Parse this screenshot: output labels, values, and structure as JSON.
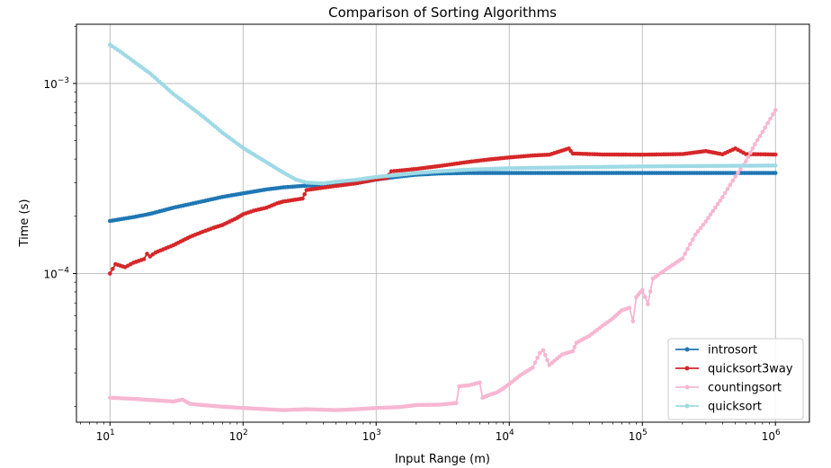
{
  "chart_data": {
    "type": "line",
    "title": "Comparison of Sorting Algorithms",
    "xlabel": "Input Range (m)",
    "ylabel": "Time (s)",
    "xscale": "log",
    "yscale": "log",
    "xlim": [
      5.6,
      1800000
    ],
    "ylim": [
      1.65e-05,
      0.00205
    ],
    "grid": true,
    "legend_position": "bottom-right",
    "x_ticks": [
      {
        "value": 10,
        "base": "10",
        "exp": "1"
      },
      {
        "value": 100,
        "base": "10",
        "exp": "2"
      },
      {
        "value": 1000,
        "base": "10",
        "exp": "3"
      },
      {
        "value": 10000,
        "base": "10",
        "exp": "4"
      },
      {
        "value": 100000,
        "base": "10",
        "exp": "5"
      },
      {
        "value": 1000000,
        "base": "10",
        "exp": "6"
      }
    ],
    "y_ticks": [
      {
        "value": 0.0001,
        "base": "10",
        "exp": "−4"
      },
      {
        "value": 0.001,
        "base": "10",
        "exp": "−3"
      }
    ],
    "series": [
      {
        "name": "introsort",
        "color": "#1f77b4",
        "points": [
          [
            10,
            0.000189
          ],
          [
            15,
            0.000198
          ],
          [
            20,
            0.000206
          ],
          [
            30,
            0.000222
          ],
          [
            50,
            0.00024
          ],
          [
            70,
            0.000253
          ],
          [
            100,
            0.000264
          ],
          [
            150,
            0.000277
          ],
          [
            200,
            0.000284
          ],
          [
            300,
            0.00029
          ],
          [
            500,
            0.000294
          ],
          [
            700,
            0.000298
          ],
          [
            1000,
            0.000312
          ],
          [
            1500,
            0.000324
          ],
          [
            2000,
            0.000331
          ],
          [
            3000,
            0.000336
          ],
          [
            5000,
            0.000338
          ],
          [
            10000,
            0.000338
          ],
          [
            100000,
            0.000338
          ],
          [
            1000000,
            0.000338
          ]
        ]
      },
      {
        "name": "quicksort3way",
        "color": "#d62728",
        "points": [
          [
            10,
            0.0001
          ],
          [
            11,
            0.000112
          ],
          [
            13,
            0.000108
          ],
          [
            15,
            0.000114
          ],
          [
            18,
            0.000119
          ],
          [
            19,
            0.000127
          ],
          [
            20,
            0.000123
          ],
          [
            22,
            0.000129
          ],
          [
            30,
            0.000141
          ],
          [
            40,
            0.000156
          ],
          [
            50,
            0.000166
          ],
          [
            60,
            0.000174
          ],
          [
            70,
            0.00018
          ],
          [
            90,
            0.000196
          ],
          [
            100,
            0.000205
          ],
          [
            120,
            0.000214
          ],
          [
            150,
            0.000222
          ],
          [
            180,
            0.000234
          ],
          [
            200,
            0.000239
          ],
          [
            280,
            0.000248
          ],
          [
            300,
            0.000275
          ],
          [
            400,
            0.000283
          ],
          [
            500,
            0.000289
          ],
          [
            700,
            0.000298
          ],
          [
            1000,
            0.000313
          ],
          [
            1200,
            0.000318
          ],
          [
            1300,
            0.000345
          ],
          [
            1500,
            0.000348
          ],
          [
            2000,
            0.000355
          ],
          [
            3000,
            0.000368
          ],
          [
            5000,
            0.000387
          ],
          [
            7000,
            0.000398
          ],
          [
            10000,
            0.000408
          ],
          [
            15000,
            0.000418
          ],
          [
            20000,
            0.000422
          ],
          [
            28000,
            0.000455
          ],
          [
            30000,
            0.000428
          ],
          [
            50000,
            0.000423
          ],
          [
            100000,
            0.000422
          ],
          [
            200000,
            0.000425
          ],
          [
            300000,
            0.000441
          ],
          [
            400000,
            0.000424
          ],
          [
            500000,
            0.000455
          ],
          [
            600000,
            0.000425
          ],
          [
            1000000,
            0.000423
          ]
        ]
      },
      {
        "name": "countingsort",
        "color": "#f7b6d2",
        "points": [
          [
            10,
            2.22e-05
          ],
          [
            15,
            2.19e-05
          ],
          [
            20,
            2.16e-05
          ],
          [
            30,
            2.12e-05
          ],
          [
            35,
            2.17e-05
          ],
          [
            40,
            2.06e-05
          ],
          [
            50,
            2.03e-05
          ],
          [
            70,
            1.99e-05
          ],
          [
            100,
            1.96e-05
          ],
          [
            150,
            1.93e-05
          ],
          [
            200,
            1.91e-05
          ],
          [
            300,
            1.93e-05
          ],
          [
            500,
            1.91e-05
          ],
          [
            700,
            1.93e-05
          ],
          [
            1000,
            1.96e-05
          ],
          [
            1500,
            1.98e-05
          ],
          [
            2000,
            2.03e-05
          ],
          [
            3000,
            2.04e-05
          ],
          [
            4000,
            2.08e-05
          ],
          [
            4200,
            2.55e-05
          ],
          [
            5000,
            2.58e-05
          ],
          [
            6000,
            2.67e-05
          ],
          [
            6300,
            2.22e-05
          ],
          [
            7000,
            2.29e-05
          ],
          [
            8000,
            2.36e-05
          ],
          [
            9000,
            2.48e-05
          ],
          [
            10000,
            2.62e-05
          ],
          [
            12000,
            2.9e-05
          ],
          [
            15000,
            3.2e-05
          ],
          [
            17000,
            3.82e-05
          ],
          [
            18000,
            3.95e-05
          ],
          [
            20000,
            3.3e-05
          ],
          [
            25000,
            3.75e-05
          ],
          [
            30000,
            3.9e-05
          ],
          [
            32000,
            4.32e-05
          ],
          [
            40000,
            4.7e-05
          ],
          [
            50000,
            5.3e-05
          ],
          [
            60000,
            5.8e-05
          ],
          [
            70000,
            6.4e-05
          ],
          [
            80000,
            6.6e-05
          ],
          [
            85000,
            5.6e-05
          ],
          [
            90000,
            7.5e-05
          ],
          [
            100000,
            8.2e-05
          ],
          [
            110000,
            6.9e-05
          ],
          [
            120000,
            9.4e-05
          ],
          [
            150000,
            0.000105
          ],
          [
            200000,
            0.00012
          ],
          [
            250000,
            0.00016
          ],
          [
            300000,
            0.000188
          ],
          [
            400000,
            0.000252
          ],
          [
            500000,
            0.000324
          ],
          [
            600000,
            0.00039
          ],
          [
            700000,
            0.000478
          ],
          [
            800000,
            0.000556
          ],
          [
            1000000,
            0.000725
          ]
        ]
      },
      {
        "name": "quicksort",
        "color": "#9edae5",
        "points": [
          [
            10,
            0.0016
          ],
          [
            12,
            0.00147
          ],
          [
            15,
            0.00131
          ],
          [
            20,
            0.00113
          ],
          [
            30,
            0.00088
          ],
          [
            50,
            0.00067
          ],
          [
            70,
            0.000551
          ],
          [
            100,
            0.000458
          ],
          [
            150,
            0.000385
          ],
          [
            200,
            0.00034
          ],
          [
            250,
            0.000312
          ],
          [
            300,
            0.000301
          ],
          [
            400,
            0.000298
          ],
          [
            500,
            0.000304
          ],
          [
            700,
            0.000311
          ],
          [
            1000,
            0.000322
          ],
          [
            1500,
            0.000331
          ],
          [
            2000,
            0.000338
          ],
          [
            3000,
            0.000345
          ],
          [
            5000,
            0.000352
          ],
          [
            10000,
            0.000358
          ],
          [
            30000,
            0.000362
          ],
          [
            100000,
            0.000366
          ],
          [
            300000,
            0.000368
          ],
          [
            1000000,
            0.00037
          ]
        ]
      }
    ]
  }
}
